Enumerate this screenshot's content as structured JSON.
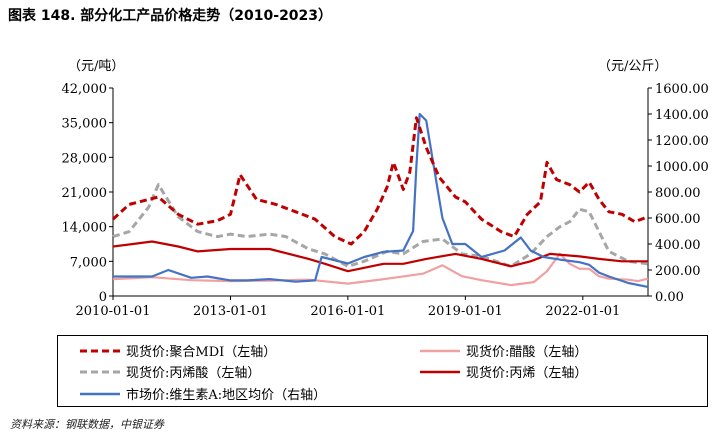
{
  "figure_title": "图表 148. 部分化工产品价格走势（2010-2023）",
  "source": "资料来源：钢联数据，中银证券",
  "chart_data": {
    "type": "line",
    "left_axis": {
      "unit_label": "（元/吨）",
      "ylim": [
        0,
        42000
      ],
      "tick_labels": [
        "0",
        "7,000",
        "14,000",
        "21,000",
        "28,000",
        "35,000",
        "42,000"
      ]
    },
    "right_axis": {
      "unit_label": "（元/公斤）",
      "ylim": [
        0,
        1600
      ],
      "tick_labels": [
        "0.00",
        "200.00",
        "400.00",
        "600.00",
        "800.00",
        "1000.00",
        "1200.00",
        "1400.00",
        "1600.00"
      ]
    },
    "x_range": [
      "2010-01-01",
      "2023-09-01"
    ],
    "x_tick_labels": [
      "2010-01-01",
      "2013-01-01",
      "2016-01-01",
      "2019-01-01",
      "2022-01-01"
    ],
    "legend_position": "bottom",
    "series": [
      {
        "name": "现货价:聚合MDI（左轴）",
        "axis": "left",
        "color": "#c00000",
        "style": "dashed",
        "points": [
          [
            "2010-01-01",
            15500
          ],
          [
            "2010-06-01",
            18500
          ],
          [
            "2011-03-01",
            20000
          ],
          [
            "2011-09-01",
            16500
          ],
          [
            "2012-03-01",
            14500
          ],
          [
            "2012-09-01",
            15200
          ],
          [
            "2013-01-01",
            16500
          ],
          [
            "2013-04-01",
            24500
          ],
          [
            "2013-09-01",
            19500
          ],
          [
            "2014-03-01",
            18500
          ],
          [
            "2014-09-01",
            17000
          ],
          [
            "2015-03-01",
            15500
          ],
          [
            "2015-09-01",
            12000
          ],
          [
            "2016-02-01",
            10500
          ],
          [
            "2016-06-01",
            13000
          ],
          [
            "2016-10-01",
            17500
          ],
          [
            "2017-01-01",
            22000
          ],
          [
            "2017-03-01",
            27000
          ],
          [
            "2017-06-01",
            21500
          ],
          [
            "2017-08-01",
            25000
          ],
          [
            "2017-10-01",
            36000
          ],
          [
            "2018-01-01",
            30000
          ],
          [
            "2018-05-01",
            24000
          ],
          [
            "2018-10-01",
            20000
          ],
          [
            "2019-01-01",
            19000
          ],
          [
            "2019-06-01",
            15500
          ],
          [
            "2019-12-01",
            13000
          ],
          [
            "2020-04-01",
            12000
          ],
          [
            "2020-08-01",
            16500
          ],
          [
            "2020-12-01",
            19000
          ],
          [
            "2021-02-01",
            27000
          ],
          [
            "2021-05-01",
            23500
          ],
          [
            "2021-09-01",
            22500
          ],
          [
            "2021-12-01",
            21000
          ],
          [
            "2022-03-01",
            23000
          ],
          [
            "2022-06-01",
            19500
          ],
          [
            "2022-09-01",
            17000
          ],
          [
            "2023-01-01",
            16500
          ],
          [
            "2023-05-01",
            15000
          ],
          [
            "2023-09-01",
            16000
          ]
        ]
      },
      {
        "name": "现货价:醋酸（左轴）",
        "axis": "left",
        "color": "#f0a0a0",
        "style": "solid",
        "points": [
          [
            "2010-01-01",
            3400
          ],
          [
            "2011-01-01",
            3800
          ],
          [
            "2012-01-01",
            3200
          ],
          [
            "2013-01-01",
            3000
          ],
          [
            "2014-01-01",
            3100
          ],
          [
            "2015-01-01",
            3300
          ],
          [
            "2016-01-01",
            2500
          ],
          [
            "2017-01-01",
            3500
          ],
          [
            "2017-12-01",
            4500
          ],
          [
            "2018-06-01",
            6200
          ],
          [
            "2018-12-01",
            4000
          ],
          [
            "2019-06-01",
            3200
          ],
          [
            "2020-03-01",
            2200
          ],
          [
            "2020-10-01",
            2800
          ],
          [
            "2021-02-01",
            5000
          ],
          [
            "2021-06-01",
            8500
          ],
          [
            "2021-09-01",
            6500
          ],
          [
            "2021-12-01",
            5500
          ],
          [
            "2022-03-01",
            5500
          ],
          [
            "2022-06-01",
            4000
          ],
          [
            "2022-09-01",
            3500
          ],
          [
            "2023-03-01",
            3300
          ],
          [
            "2023-06-01",
            3000
          ],
          [
            "2023-09-01",
            3500
          ]
        ]
      },
      {
        "name": "现货价:丙烯酸（左轴）",
        "axis": "left",
        "color": "#a6a6a6",
        "style": "dashed",
        "points": [
          [
            "2010-01-01",
            12000
          ],
          [
            "2010-06-01",
            13000
          ],
          [
            "2010-12-01",
            18000
          ],
          [
            "2011-03-01",
            22500
          ],
          [
            "2011-09-01",
            16000
          ],
          [
            "2012-03-01",
            13000
          ],
          [
            "2012-09-01",
            12000
          ],
          [
            "2013-01-01",
            12500
          ],
          [
            "2013-06-01",
            12000
          ],
          [
            "2014-01-01",
            12500
          ],
          [
            "2014-06-01",
            12000
          ],
          [
            "2015-01-01",
            9500
          ],
          [
            "2015-06-01",
            8500
          ],
          [
            "2016-01-01",
            6000
          ],
          [
            "2016-06-01",
            7000
          ],
          [
            "2017-01-01",
            9000
          ],
          [
            "2017-06-01",
            8500
          ],
          [
            "2017-12-01",
            11000
          ],
          [
            "2018-06-01",
            11500
          ],
          [
            "2018-12-01",
            8500
          ],
          [
            "2019-06-01",
            8000
          ],
          [
            "2020-03-01",
            6000
          ],
          [
            "2020-09-01",
            8500
          ],
          [
            "2021-02-01",
            12000
          ],
          [
            "2021-06-01",
            14000
          ],
          [
            "2021-09-01",
            15000
          ],
          [
            "2021-12-01",
            17500
          ],
          [
            "2022-03-01",
            17000
          ],
          [
            "2022-06-01",
            13000
          ],
          [
            "2022-09-01",
            9000
          ],
          [
            "2023-03-01",
            7000
          ],
          [
            "2023-09-01",
            6500
          ]
        ]
      },
      {
        "name": "现货价:丙烯（左轴）",
        "axis": "left",
        "color": "#c00000",
        "style": "solid",
        "points": [
          [
            "2010-01-01",
            10000
          ],
          [
            "2011-01-01",
            11000
          ],
          [
            "2011-09-01",
            10000
          ],
          [
            "2012-03-01",
            9000
          ],
          [
            "2013-01-01",
            9500
          ],
          [
            "2014-01-01",
            9500
          ],
          [
            "2015-01-01",
            7500
          ],
          [
            "2015-06-01",
            6500
          ],
          [
            "2016-01-01",
            5000
          ],
          [
            "2016-12-01",
            6500
          ],
          [
            "2017-06-01",
            6500
          ],
          [
            "2018-01-01",
            7500
          ],
          [
            "2018-10-01",
            8500
          ],
          [
            "2019-06-01",
            7500
          ],
          [
            "2020-03-01",
            6000
          ],
          [
            "2020-09-01",
            7000
          ],
          [
            "2021-03-01",
            8500
          ],
          [
            "2021-12-01",
            8000
          ],
          [
            "2022-06-01",
            7500
          ],
          [
            "2023-01-01",
            7000
          ],
          [
            "2023-09-01",
            7000
          ]
        ]
      },
      {
        "name": "市场价:维生素A:地区均价（右轴）",
        "axis": "right",
        "color": "#4472c4",
        "style": "solid",
        "points": [
          [
            "2010-01-01",
            150
          ],
          [
            "2011-01-01",
            150
          ],
          [
            "2011-06-01",
            200
          ],
          [
            "2012-01-01",
            140
          ],
          [
            "2012-06-01",
            150
          ],
          [
            "2013-01-01",
            120
          ],
          [
            "2013-06-01",
            120
          ],
          [
            "2014-01-01",
            130
          ],
          [
            "2014-09-01",
            110
          ],
          [
            "2015-03-01",
            120
          ],
          [
            "2015-05-01",
            300
          ],
          [
            "2016-01-01",
            250
          ],
          [
            "2016-06-01",
            300
          ],
          [
            "2016-12-01",
            340
          ],
          [
            "2017-06-01",
            350
          ],
          [
            "2017-09-01",
            500
          ],
          [
            "2017-10-01",
            1000
          ],
          [
            "2017-11-01",
            1400
          ],
          [
            "2018-01-01",
            1350
          ],
          [
            "2018-04-01",
            900
          ],
          [
            "2018-06-01",
            600
          ],
          [
            "2018-09-01",
            400
          ],
          [
            "2019-01-01",
            400
          ],
          [
            "2019-06-01",
            300
          ],
          [
            "2020-01-01",
            350
          ],
          [
            "2020-06-01",
            450
          ],
          [
            "2020-09-01",
            350
          ],
          [
            "2021-01-01",
            300
          ],
          [
            "2021-06-01",
            280
          ],
          [
            "2021-12-01",
            260
          ],
          [
            "2022-03-01",
            240
          ],
          [
            "2022-06-01",
            180
          ],
          [
            "2022-09-01",
            150
          ],
          [
            "2023-03-01",
            100
          ],
          [
            "2023-09-01",
            70
          ]
        ]
      }
    ]
  }
}
